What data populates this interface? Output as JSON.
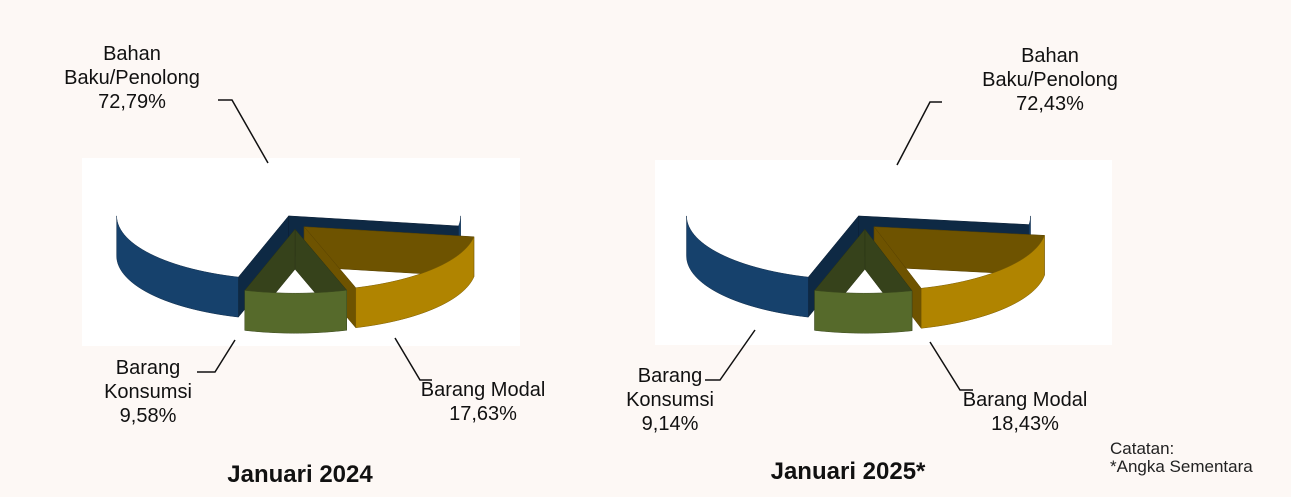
{
  "chart_data": [
    {
      "type": "pie",
      "title": "Januari 2024",
      "categories": [
        "Bahan Baku/Penolong",
        "Barang Modal",
        "Barang Konsumsi"
      ],
      "values": [
        72.79,
        17.63,
        9.58
      ],
      "value_labels": [
        "72,79%",
        "17,63%",
        "9,58%"
      ],
      "colors": [
        "#1f5a96",
        "#f5b800",
        "#77933c"
      ]
    },
    {
      "type": "pie",
      "title": "Januari 2025*",
      "categories": [
        "Bahan Baku/Penolong",
        "Barang Modal",
        "Barang Konsumsi"
      ],
      "values": [
        72.43,
        18.43,
        9.14
      ],
      "value_labels": [
        "72,43%",
        "18,43%",
        "9,14%"
      ],
      "colors": [
        "#1f5a96",
        "#f5b800",
        "#77933c"
      ]
    }
  ],
  "note": [
    "Catatan:",
    "*Angka Sementara"
  ]
}
